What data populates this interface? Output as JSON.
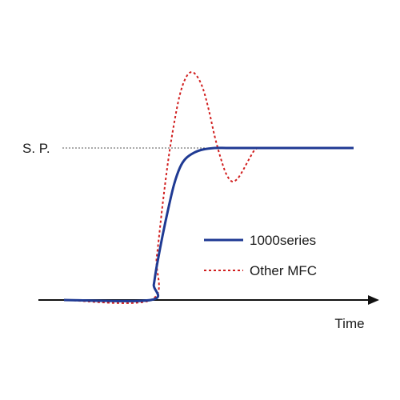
{
  "chart_data": {
    "type": "line",
    "xlabel": "Time",
    "setpoint_label": "S. P.",
    "ylim": [
      0,
      1.5
    ],
    "xlim": [
      0,
      1
    ],
    "legend_position": "center-right",
    "colors": {
      "axis": "#111111",
      "setpoint_guide": "#555555"
    },
    "series": [
      {
        "name": "1000series",
        "style": "solid",
        "color": "#1f3a93",
        "x": [
          0.0,
          0.3,
          0.31,
          0.32,
          0.34,
          0.36,
          0.38,
          0.4,
          0.42,
          0.45,
          0.48,
          0.52,
          0.56,
          0.6,
          1.0
        ],
        "y": [
          0.0,
          0.0,
          0.1,
          0.22,
          0.42,
          0.6,
          0.76,
          0.87,
          0.93,
          0.97,
          0.99,
          1.0,
          1.0,
          1.0,
          1.0
        ]
      },
      {
        "name": "Other MFC",
        "style": "dotted",
        "color": "#d11f1f",
        "x": [
          0.0,
          0.3,
          0.32,
          0.34,
          0.36,
          0.38,
          0.4,
          0.42,
          0.44,
          0.46,
          0.48,
          0.5,
          0.52,
          0.54,
          0.56,
          0.58,
          0.6,
          0.62,
          0.64,
          0.66,
          0.68,
          0.7
        ],
        "y": [
          0.0,
          0.0,
          0.28,
          0.62,
          0.92,
          1.16,
          1.35,
          1.46,
          1.5,
          1.47,
          1.39,
          1.25,
          1.08,
          0.94,
          0.83,
          0.78,
          0.8,
          0.86,
          0.93,
          0.99,
          1.0,
          1.0
        ]
      }
    ]
  }
}
